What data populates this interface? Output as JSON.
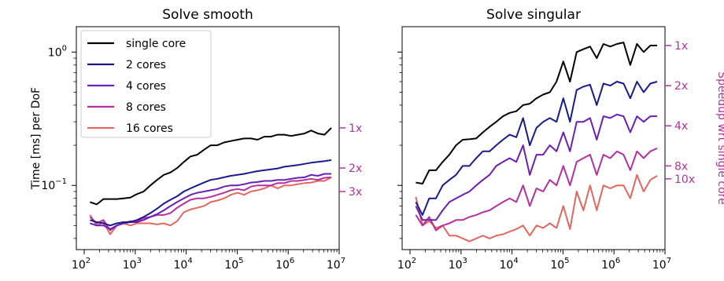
{
  "colors": {
    "single": "#000000",
    "c2": "#1a1a8c",
    "c4": "#6a1fb5",
    "c8": "#b5309f",
    "c16": "#e3675f",
    "speedup": "#b5309f"
  },
  "chart_data": [
    {
      "type": "line",
      "title": "Solve smooth",
      "ylabel": "Time [ms] per DoF",
      "xscale": "log",
      "yscale": "log",
      "xlim": [
        70,
        10000000
      ],
      "ylim": [
        0.033,
        1.55
      ],
      "xticks": [
        {
          "base": "10",
          "exp": "2"
        },
        {
          "base": "10",
          "exp": "3"
        },
        {
          "base": "10",
          "exp": "4"
        },
        {
          "base": "10",
          "exp": "5"
        },
        {
          "base": "10",
          "exp": "6"
        },
        {
          "base": "10",
          "exp": "7"
        }
      ],
      "yticks": [
        {
          "base": "10",
          "exp": "0",
          "value": 1
        },
        {
          "base": "10",
          "exp": "−1",
          "value": 0.1
        }
      ],
      "legend": {
        "position": "top-left",
        "entries": [
          "single core",
          "2 cores",
          "4 cores",
          "8 cores",
          "16 cores"
        ]
      },
      "speedup_markers": [
        {
          "label": "1x",
          "value": 0.27
        },
        {
          "label": "2x",
          "value": 0.135
        },
        {
          "label": "3x",
          "value": 0.09
        }
      ],
      "series": [
        {
          "name": "single core",
          "color_key": "single",
          "values": [
            0.075,
            0.072,
            0.079,
            0.079,
            0.079,
            0.08,
            0.081,
            0.086,
            0.09,
            0.1,
            0.11,
            0.12,
            0.125,
            0.135,
            0.15,
            0.165,
            0.17,
            0.185,
            0.2,
            0.2,
            0.21,
            0.215,
            0.22,
            0.225,
            0.225,
            0.22,
            0.232,
            0.232,
            0.24,
            0.24,
            0.235,
            0.24,
            0.245,
            0.258,
            0.245,
            0.24,
            0.27
          ]
        },
        {
          "name": "2 cores",
          "color_key": "c2",
          "values": [
            0.055,
            0.053,
            0.052,
            0.05,
            0.052,
            0.053,
            0.053,
            0.055,
            0.058,
            0.062,
            0.067,
            0.073,
            0.078,
            0.083,
            0.09,
            0.095,
            0.1,
            0.105,
            0.11,
            0.112,
            0.115,
            0.118,
            0.12,
            0.122,
            0.125,
            0.128,
            0.13,
            0.132,
            0.134,
            0.138,
            0.14,
            0.142,
            0.145,
            0.148,
            0.15,
            0.152,
            0.155
          ]
        },
        {
          "name": "4 cores",
          "color_key": "c4",
          "values": [
            0.052,
            0.05,
            0.05,
            0.047,
            0.05,
            0.052,
            0.053,
            0.053,
            0.055,
            0.058,
            0.061,
            0.065,
            0.07,
            0.075,
            0.08,
            0.085,
            0.088,
            0.09,
            0.092,
            0.094,
            0.098,
            0.1,
            0.1,
            0.102,
            0.105,
            0.106,
            0.108,
            0.108,
            0.11,
            0.11,
            0.112,
            0.114,
            0.115,
            0.12,
            0.118,
            0.122,
            0.122
          ]
        },
        {
          "name": "8 cores",
          "color_key": "c8",
          "values": [
            0.058,
            0.052,
            0.055,
            0.046,
            0.05,
            0.052,
            0.054,
            0.054,
            0.057,
            0.058,
            0.06,
            0.06,
            0.062,
            0.068,
            0.073,
            0.078,
            0.08,
            0.08,
            0.082,
            0.085,
            0.088,
            0.092,
            0.094,
            0.092,
            0.098,
            0.1,
            0.1,
            0.1,
            0.104,
            0.104,
            0.108,
            0.108,
            0.11,
            0.112,
            0.11,
            0.114,
            0.115
          ]
        },
        {
          "name": "16 cores",
          "color_key": "c16",
          "values": [
            0.06,
            0.05,
            0.053,
            0.043,
            0.05,
            0.052,
            0.05,
            0.052,
            0.052,
            0.052,
            0.051,
            0.052,
            0.05,
            0.054,
            0.063,
            0.066,
            0.068,
            0.07,
            0.075,
            0.077,
            0.08,
            0.085,
            0.088,
            0.085,
            0.09,
            0.092,
            0.095,
            0.1,
            0.095,
            0.1,
            0.1,
            0.102,
            0.104,
            0.105,
            0.108,
            0.108,
            0.115
          ]
        }
      ]
    },
    {
      "type": "line",
      "title": "Solve singular",
      "ylabel": "",
      "y2label": "Speedup wrt single core",
      "xscale": "log",
      "yscale": "log",
      "xlim": [
        70,
        10000000
      ],
      "ylim": [
        0.033,
        1.55
      ],
      "xticks": [
        {
          "base": "10",
          "exp": "2"
        },
        {
          "base": "10",
          "exp": "3"
        },
        {
          "base": "10",
          "exp": "4"
        },
        {
          "base": "10",
          "exp": "5"
        },
        {
          "base": "10",
          "exp": "6"
        },
        {
          "base": "10",
          "exp": "7"
        }
      ],
      "speedup_markers": [
        {
          "label": "1x",
          "value": 1.12
        },
        {
          "label": "2x",
          "value": 0.56
        },
        {
          "label": "4x",
          "value": 0.28
        },
        {
          "label": "8x",
          "value": 0.14
        },
        {
          "label": "10x",
          "value": 0.112
        }
      ],
      "series": [
        {
          "name": "single core",
          "color_key": "single",
          "values": [
            0.105,
            0.103,
            0.13,
            0.13,
            0.15,
            0.17,
            0.2,
            0.22,
            0.222,
            0.225,
            0.25,
            0.275,
            0.3,
            0.33,
            0.35,
            0.36,
            0.4,
            0.41,
            0.45,
            0.48,
            0.5,
            0.6,
            0.85,
            0.6,
            1.0,
            1.05,
            1.1,
            0.9,
            1.15,
            1.1,
            1.15,
            1.18,
            0.8,
            1.15,
            1.0,
            1.12,
            1.12
          ]
        },
        {
          "name": "2 cores",
          "color_key": "c2",
          "values": [
            0.075,
            0.06,
            0.08,
            0.08,
            0.1,
            0.11,
            0.12,
            0.14,
            0.14,
            0.16,
            0.18,
            0.18,
            0.2,
            0.22,
            0.24,
            0.23,
            0.32,
            0.2,
            0.27,
            0.3,
            0.32,
            0.3,
            0.45,
            0.3,
            0.52,
            0.55,
            0.57,
            0.4,
            0.58,
            0.56,
            0.6,
            0.58,
            0.45,
            0.6,
            0.5,
            0.58,
            0.6
          ]
        },
        {
          "name": "4 cores",
          "color_key": "c4",
          "values": [
            0.07,
            0.055,
            0.055,
            0.055,
            0.065,
            0.075,
            0.08,
            0.085,
            0.09,
            0.1,
            0.11,
            0.12,
            0.14,
            0.15,
            0.16,
            0.15,
            0.2,
            0.12,
            0.17,
            0.17,
            0.2,
            0.18,
            0.25,
            0.18,
            0.3,
            0.3,
            0.32,
            0.22,
            0.33,
            0.32,
            0.34,
            0.33,
            0.25,
            0.33,
            0.3,
            0.33,
            0.33
          ]
        },
        {
          "name": "8 cores",
          "color_key": "c8",
          "values": [
            0.06,
            0.05,
            0.058,
            0.046,
            0.05,
            0.052,
            0.055,
            0.055,
            0.058,
            0.06,
            0.063,
            0.065,
            0.07,
            0.075,
            0.08,
            0.075,
            0.1,
            0.07,
            0.095,
            0.09,
            0.11,
            0.1,
            0.14,
            0.1,
            0.15,
            0.16,
            0.17,
            0.12,
            0.17,
            0.16,
            0.18,
            0.17,
            0.13,
            0.18,
            0.16,
            0.18,
            0.19
          ]
        },
        {
          "name": "16 cores",
          "color_key": "c16",
          "values": [
            0.082,
            0.05,
            0.054,
            0.048,
            0.05,
            0.042,
            0.042,
            0.04,
            0.038,
            0.04,
            0.042,
            0.04,
            0.042,
            0.043,
            0.045,
            0.047,
            0.05,
            0.042,
            0.05,
            0.048,
            0.052,
            0.048,
            0.07,
            0.047,
            0.09,
            0.065,
            0.1,
            0.065,
            0.1,
            0.095,
            0.1,
            0.1,
            0.08,
            0.12,
            0.09,
            0.11,
            0.118
          ]
        }
      ]
    }
  ]
}
